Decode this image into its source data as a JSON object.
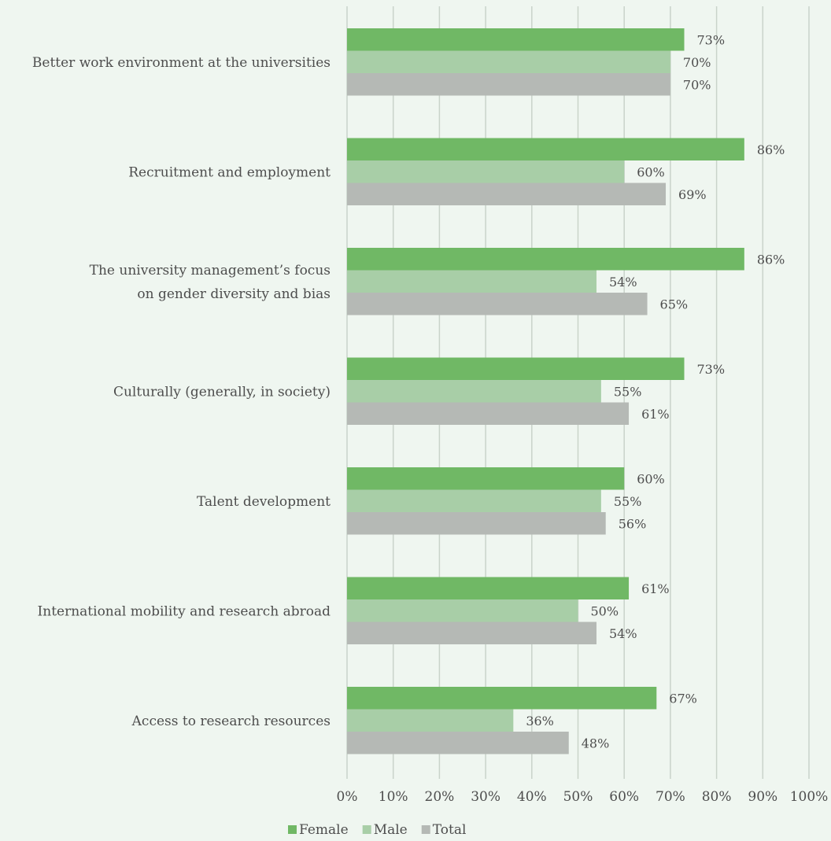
{
  "chart_data": {
    "type": "bar",
    "orientation": "horizontal",
    "categories": [
      [
        "Better work environment at the universities"
      ],
      [
        "Recruitment and employment"
      ],
      [
        "The university management’s focus",
        "on gender diversity and bias"
      ],
      [
        "Culturally (generally, in society)"
      ],
      [
        "Talent development"
      ],
      [
        "International mobility and research abroad"
      ],
      [
        "Access to research resources"
      ]
    ],
    "series": [
      {
        "name": "Female",
        "color": "#70b865",
        "values": [
          73,
          86,
          86,
          73,
          60,
          61,
          67
        ],
        "labels": [
          "73%",
          "86%",
          "86%",
          "73%",
          "60%",
          "61%",
          "67%"
        ]
      },
      {
        "name": "Male",
        "color": "#a8cea7",
        "values": [
          70,
          60,
          54,
          55,
          55,
          50,
          36
        ],
        "labels": [
          "70%",
          "60%",
          "54%",
          "55%",
          "55%",
          "50%",
          "36%"
        ]
      },
      {
        "name": "Total",
        "color": "#b5b9b5",
        "values": [
          70,
          69,
          65,
          61,
          56,
          54,
          48
        ],
        "labels": [
          "70%",
          "69%",
          "65%",
          "61%",
          "56%",
          "54%",
          "48%"
        ]
      }
    ],
    "xlim": [
      0,
      100
    ],
    "x_ticks": [
      "0%",
      "10%",
      "20%",
      "30%",
      "40%",
      "50%",
      "60%",
      "70%",
      "80%",
      "90%",
      "100%"
    ],
    "grid": "vertical",
    "grid_color": "#c9d3ca",
    "legend_position": "bottom"
  }
}
